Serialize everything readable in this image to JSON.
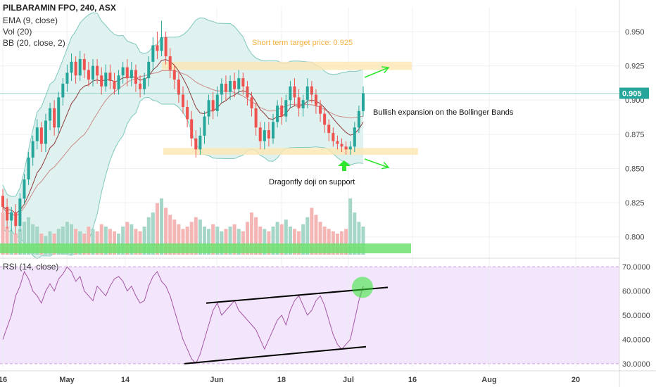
{
  "chart_data": {
    "type": "candlestick",
    "title": "PILBARAMIN FPO, 240, ASX",
    "indicators": [
      "EMA (9, close)",
      "Vol (20)",
      "BB (20, close, 2)"
    ],
    "rsi_label": "RSI (14, close)",
    "x_ticks": [
      "16",
      "May",
      "14",
      "Jun",
      "18",
      "Jul",
      "16",
      "Aug",
      "20"
    ],
    "price_ticks": [
      "0.950",
      "0.925",
      "0.900",
      "0.875",
      "0.850",
      "0.825",
      "0.800"
    ],
    "rsi_ticks": [
      "70.0000",
      "60.0000",
      "50.0000",
      "40.0000",
      "30.0000"
    ],
    "price_range": [
      0.787,
      0.968
    ],
    "rsi_range": [
      28.5,
      71.5
    ],
    "last_price": "0.905",
    "colors": {
      "up": "#26a69a",
      "down": "#ef5350",
      "up_light": "#a5d6c8",
      "down_light": "#f4b6b4",
      "bb_fill": "#e0f2ef",
      "bb_line": "#7ec8bd",
      "ema": "#8e3b3b",
      "rsi_line": "#a457a4",
      "rsi_bg": "#f3e5fc",
      "highlight": "#fde6b3",
      "support_bar": "#6ee06e",
      "arrow": "#2ee62e",
      "last_price_bg": "#26a69a"
    },
    "annotations": {
      "target": "Short term target price: 0.925",
      "bollinger": "Bullish expansion on the Bollinger Bands",
      "doji": "Dragonfly doji on support"
    },
    "candles": [
      [
        0.83,
        0.822,
        0.835,
        0.818
      ],
      [
        0.822,
        0.812,
        0.828,
        0.806
      ],
      [
        0.812,
        0.818,
        0.822,
        0.804
      ],
      [
        0.818,
        0.808,
        0.824,
        0.802
      ],
      [
        0.808,
        0.828,
        0.832,
        0.804
      ],
      [
        0.828,
        0.842,
        0.846,
        0.824
      ],
      [
        0.842,
        0.858,
        0.862,
        0.838
      ],
      [
        0.858,
        0.87,
        0.874,
        0.852
      ],
      [
        0.87,
        0.88,
        0.886,
        0.864
      ],
      [
        0.88,
        0.868,
        0.884,
        0.862
      ],
      [
        0.868,
        0.885,
        0.89,
        0.862
      ],
      [
        0.885,
        0.894,
        0.898,
        0.878
      ],
      [
        0.894,
        0.88,
        0.9,
        0.874
      ],
      [
        0.88,
        0.902,
        0.906,
        0.876
      ],
      [
        0.902,
        0.912,
        0.916,
        0.896
      ],
      [
        0.912,
        0.92,
        0.926,
        0.906
      ],
      [
        0.92,
        0.928,
        0.934,
        0.914
      ],
      [
        0.928,
        0.918,
        0.932,
        0.912
      ],
      [
        0.918,
        0.93,
        0.936,
        0.914
      ],
      [
        0.93,
        0.922,
        0.934,
        0.916
      ],
      [
        0.922,
        0.915,
        0.928,
        0.91
      ],
      [
        0.915,
        0.925,
        0.93,
        0.91
      ],
      [
        0.925,
        0.918,
        0.93,
        0.912
      ],
      [
        0.918,
        0.91,
        0.924,
        0.904
      ],
      [
        0.91,
        0.92,
        0.926,
        0.906
      ],
      [
        0.92,
        0.914,
        0.926,
        0.908
      ],
      [
        0.914,
        0.908,
        0.92,
        0.904
      ],
      [
        0.908,
        0.918,
        0.922,
        0.904
      ],
      [
        0.918,
        0.924,
        0.928,
        0.912
      ],
      [
        0.924,
        0.916,
        0.93,
        0.91
      ],
      [
        0.916,
        0.922,
        0.928,
        0.91
      ],
      [
        0.922,
        0.912,
        0.926,
        0.906
      ],
      [
        0.912,
        0.908,
        0.918,
        0.902
      ],
      [
        0.908,
        0.916,
        0.92,
        0.904
      ],
      [
        0.916,
        0.928,
        0.932,
        0.91
      ],
      [
        0.928,
        0.94,
        0.946,
        0.922
      ],
      [
        0.94,
        0.936,
        0.95,
        0.93
      ],
      [
        0.936,
        0.946,
        0.958,
        0.932
      ],
      [
        0.946,
        0.932,
        0.95,
        0.926
      ],
      [
        0.932,
        0.922,
        0.938,
        0.916
      ],
      [
        0.922,
        0.915,
        0.926,
        0.908
      ],
      [
        0.915,
        0.904,
        0.92,
        0.898
      ],
      [
        0.904,
        0.895,
        0.91,
        0.89
      ],
      [
        0.895,
        0.886,
        0.9,
        0.88
      ],
      [
        0.886,
        0.872,
        0.892,
        0.866
      ],
      [
        0.872,
        0.864,
        0.878,
        0.858
      ],
      [
        0.864,
        0.874,
        0.88,
        0.86
      ],
      [
        0.874,
        0.888,
        0.892,
        0.868
      ],
      [
        0.888,
        0.9,
        0.904,
        0.882
      ],
      [
        0.9,
        0.892,
        0.906,
        0.886
      ],
      [
        0.892,
        0.904,
        0.91,
        0.888
      ],
      [
        0.904,
        0.912,
        0.916,
        0.898
      ],
      [
        0.912,
        0.906,
        0.918,
        0.9
      ],
      [
        0.906,
        0.914,
        0.918,
        0.9
      ],
      [
        0.914,
        0.908,
        0.92,
        0.902
      ],
      [
        0.908,
        0.916,
        0.922,
        0.904
      ],
      [
        0.916,
        0.91,
        0.92,
        0.904
      ],
      [
        0.91,
        0.902,
        0.914,
        0.896
      ],
      [
        0.902,
        0.894,
        0.906,
        0.888
      ],
      [
        0.894,
        0.88,
        0.898,
        0.874
      ],
      [
        0.88,
        0.87,
        0.884,
        0.864
      ],
      [
        0.87,
        0.878,
        0.884,
        0.864
      ],
      [
        0.878,
        0.872,
        0.884,
        0.866
      ],
      [
        0.872,
        0.884,
        0.89,
        0.868
      ],
      [
        0.884,
        0.896,
        0.9,
        0.88
      ],
      [
        0.896,
        0.888,
        0.902,
        0.882
      ],
      [
        0.888,
        0.9,
        0.904,
        0.884
      ],
      [
        0.9,
        0.91,
        0.914,
        0.894
      ],
      [
        0.91,
        0.902,
        0.916,
        0.896
      ],
      [
        0.902,
        0.894,
        0.908,
        0.888
      ],
      [
        0.894,
        0.9,
        0.904,
        0.888
      ],
      [
        0.9,
        0.91,
        0.916,
        0.894
      ],
      [
        0.91,
        0.904,
        0.914,
        0.898
      ],
      [
        0.904,
        0.896,
        0.908,
        0.89
      ],
      [
        0.896,
        0.89,
        0.9,
        0.884
      ],
      [
        0.89,
        0.882,
        0.894,
        0.876
      ],
      [
        0.882,
        0.876,
        0.886,
        0.87
      ],
      [
        0.876,
        0.87,
        0.88,
        0.866
      ],
      [
        0.87,
        0.868,
        0.874,
        0.864
      ],
      [
        0.868,
        0.866,
        0.872,
        0.862
      ],
      [
        0.866,
        0.864,
        0.87,
        0.86
      ],
      [
        0.864,
        0.866,
        0.87,
        0.86
      ],
      [
        0.866,
        0.88,
        0.884,
        0.862
      ],
      [
        0.88,
        0.892,
        0.896,
        0.876
      ],
      [
        0.892,
        0.905,
        0.91,
        0.888
      ]
    ],
    "volume": [
      18,
      12,
      10,
      9,
      11,
      14,
      16,
      13,
      12,
      9,
      8,
      10,
      9,
      11,
      12,
      14,
      13,
      11,
      10,
      9,
      12,
      11,
      10,
      13,
      12,
      11,
      10,
      9,
      12,
      14,
      13,
      11,
      10,
      12,
      16,
      18,
      22,
      24,
      20,
      17,
      15,
      13,
      11,
      12,
      14,
      16,
      15,
      12,
      11,
      13,
      12,
      10,
      11,
      12,
      13,
      11,
      10,
      14,
      18,
      16,
      12,
      11,
      10,
      12,
      14,
      13,
      15,
      12,
      11,
      10,
      13,
      16,
      20,
      17,
      14,
      12,
      11,
      10,
      9,
      10,
      11,
      24,
      18,
      14,
      12
    ],
    "rsi": [
      40,
      45,
      50,
      58,
      62,
      68,
      65,
      60,
      58,
      55,
      60,
      63,
      60,
      65,
      67,
      70,
      68,
      64,
      66,
      60,
      58,
      56,
      62,
      60,
      58,
      62,
      65,
      66,
      64,
      60,
      62,
      58,
      55,
      56,
      62,
      66,
      68,
      64,
      62,
      58,
      52,
      46,
      40,
      36,
      32,
      30,
      34,
      40,
      46,
      52,
      55,
      50,
      52,
      54,
      56,
      52,
      50,
      48,
      46,
      44,
      40,
      36,
      40,
      44,
      48,
      50,
      46,
      52,
      56,
      58,
      54,
      50,
      52,
      56,
      58,
      54,
      48,
      42,
      38,
      36,
      38,
      40,
      48,
      56,
      62
    ],
    "series": [
      {
        "name": "EMA (9, close)"
      },
      {
        "name": "BB (20, close, 2)"
      },
      {
        "name": "RSI (14, close)"
      }
    ]
  }
}
